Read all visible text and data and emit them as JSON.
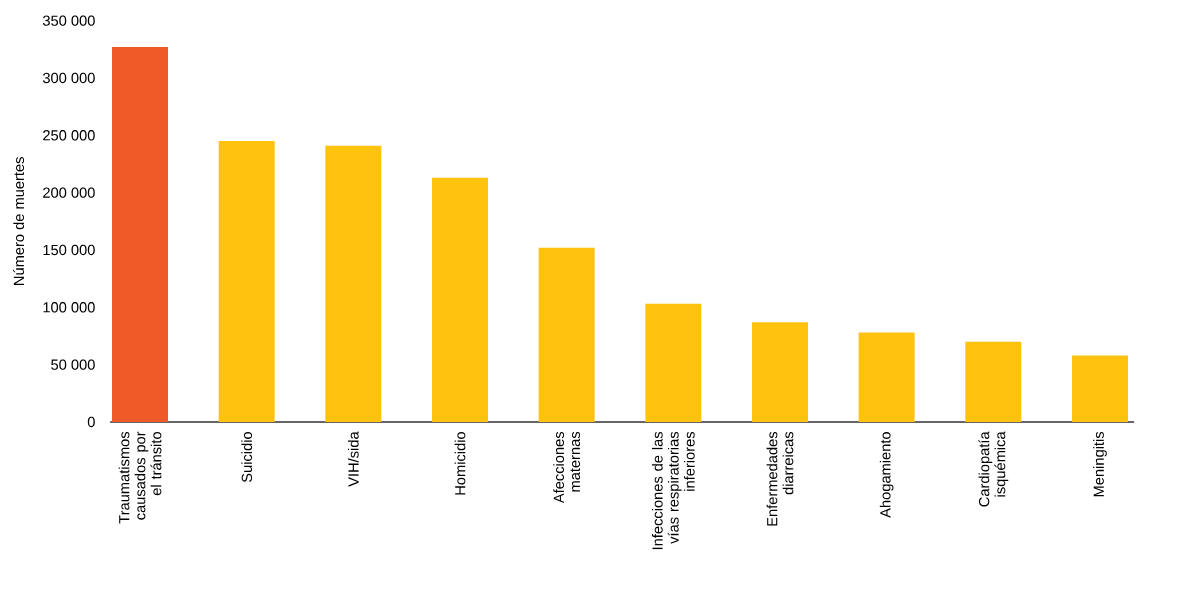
{
  "chart_data": {
    "type": "bar",
    "ylabel": "Número de muertes",
    "categories": [
      "Traumatismos causados por el tránsito",
      "Suicidio",
      "VIH/sida",
      "Homicidio",
      "Afecciones maternas",
      "Infecciones de las vías respiratorias inferiores",
      "Enfermedades diarreicas",
      "Ahogamiento",
      "Cardiopatía isquémica",
      "Meningitis"
    ],
    "values": [
      327000,
      245000,
      241000,
      213000,
      152000,
      103000,
      87000,
      78000,
      70000,
      58000
    ],
    "colors": [
      "#f05a28",
      "#fec20f",
      "#fec20f",
      "#fec20f",
      "#fec20f",
      "#fec20f",
      "#fec20f",
      "#fec20f",
      "#fec20f",
      "#fec20f"
    ],
    "ylim": [
      0,
      350000
    ],
    "yticks": [
      {
        "value": 0,
        "label": "0"
      },
      {
        "value": 50000,
        "label": "50 000"
      },
      {
        "value": 100000,
        "label": "100 000"
      },
      {
        "value": 150000,
        "label": "150 000"
      },
      {
        "value": 200000,
        "label": "200 000"
      },
      {
        "value": 250000,
        "label": "250 000"
      },
      {
        "value": 300000,
        "label": "300 000"
      },
      {
        "value": 350000,
        "label": "350 000"
      }
    ]
  }
}
